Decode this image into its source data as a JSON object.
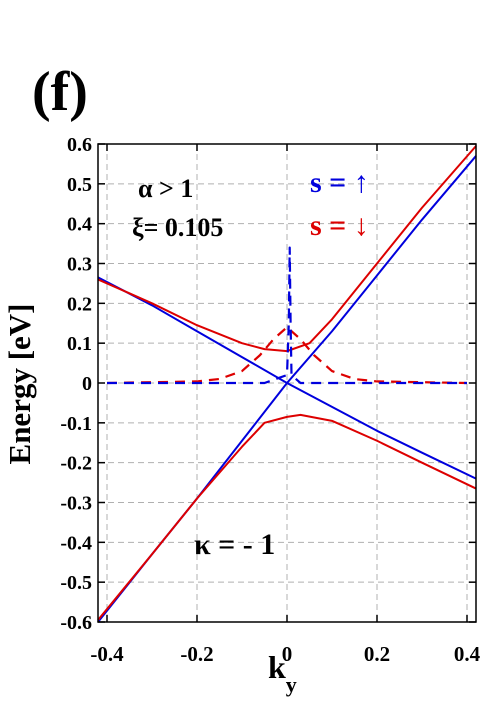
{
  "panel_label": "(f)",
  "chart_data": {
    "type": "line",
    "title": "",
    "xlabel_main": "k",
    "xlabel_sub": "y",
    "ylabel": "Energy [eV]",
    "xlim": [
      -0.42,
      0.42
    ],
    "ylim": [
      -0.6,
      0.6
    ],
    "grid": true,
    "x_ticks": [
      -0.4,
      -0.2,
      0,
      0.2,
      0.4
    ],
    "x_tick_labels": [
      "-0.4",
      "-0.2",
      "0",
      "0.2",
      "0.4"
    ],
    "y_ticks": [
      -0.6,
      -0.5,
      -0.4,
      -0.3,
      -0.2,
      -0.1,
      0,
      0.1,
      0.2,
      0.3,
      0.4,
      0.5,
      0.6
    ],
    "y_tick_labels": [
      "-0.6",
      "-0.5",
      "-0.4",
      "-0.3",
      "-0.2",
      "-0.1",
      "0",
      "0.1",
      "0.2",
      "0.3",
      "0.4",
      "0.5",
      "0.6"
    ],
    "annotations": {
      "alpha": "α > 1",
      "xi": "ξ= 0.105",
      "kappa": "κ = - 1",
      "spin_up": "s = ↑",
      "spin_down": "s = ↓"
    },
    "series": [
      {
        "key": "blue-band-a",
        "color": "#0000dd",
        "style": "solid",
        "x": [
          -0.42,
          -0.3,
          -0.2,
          -0.1,
          0.0,
          0.1,
          0.2,
          0.3,
          0.42
        ],
        "y": [
          -0.6,
          -0.43,
          -0.29,
          -0.145,
          0.0,
          0.13,
          0.27,
          0.41,
          0.57
        ]
      },
      {
        "key": "blue-band-b",
        "color": "#0000dd",
        "style": "solid",
        "x": [
          -0.42,
          -0.3,
          -0.2,
          -0.1,
          0.0,
          0.1,
          0.2,
          0.3,
          0.42
        ],
        "y": [
          0.265,
          0.195,
          0.13,
          0.065,
          0.0,
          -0.06,
          -0.12,
          -0.175,
          -0.24
        ]
      },
      {
        "key": "red-band-upper",
        "color": "#dd0000",
        "style": "solid",
        "x": [
          -0.42,
          -0.3,
          -0.2,
          -0.1,
          -0.05,
          0.0,
          0.05,
          0.1,
          0.2,
          0.3,
          0.42
        ],
        "y": [
          0.26,
          0.2,
          0.145,
          0.1,
          0.085,
          0.08,
          0.1,
          0.16,
          0.3,
          0.44,
          0.595
        ]
      },
      {
        "key": "red-band-lower",
        "color": "#dd0000",
        "style": "solid",
        "x": [
          -0.42,
          -0.3,
          -0.2,
          -0.1,
          -0.05,
          0.0,
          0.03,
          0.1,
          0.2,
          0.3,
          0.42
        ],
        "y": [
          -0.595,
          -0.43,
          -0.29,
          -0.16,
          -0.1,
          -0.085,
          -0.08,
          -0.095,
          -0.145,
          -0.2,
          -0.265
        ]
      },
      {
        "key": "red-dashed-peak",
        "color": "#dd0000",
        "style": "dashed",
        "x": [
          -0.4,
          -0.2,
          -0.15,
          -0.1,
          -0.06,
          -0.03,
          0.0,
          0.03,
          0.06,
          0.1,
          0.15,
          0.2,
          0.4
        ],
        "y": [
          0.0,
          0.004,
          0.01,
          0.03,
          0.07,
          0.11,
          0.14,
          0.11,
          0.07,
          0.03,
          0.01,
          0.004,
          0.0
        ]
      },
      {
        "key": "blue-dashed-peak",
        "color": "#0000dd",
        "style": "dashed",
        "x": [
          -0.4,
          -0.05,
          0.0,
          0.004,
          0.006,
          0.008,
          0.01,
          0.03,
          0.4
        ],
        "y": [
          0.0,
          0.0,
          0.02,
          0.15,
          0.34,
          0.15,
          0.02,
          0.0,
          0.0
        ]
      }
    ]
  }
}
